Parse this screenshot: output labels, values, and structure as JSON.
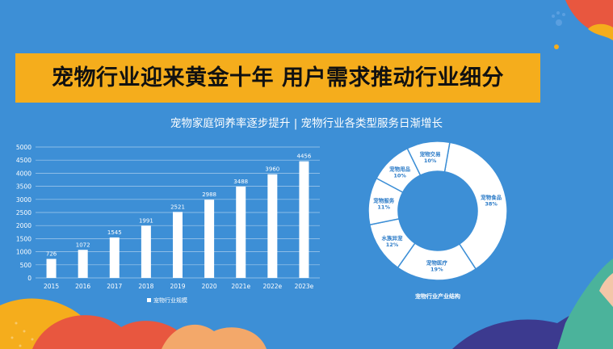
{
  "header": {
    "title": "宠物行业迎来黄金十年  用户需求推动行业细分",
    "subtitle": "宠物家庭饲养率逐步提升 | 宠物行业各类型服务日渐增长"
  },
  "colors": {
    "background": "#3d8fd6",
    "banner": "#f5ad1c",
    "bars": "#ffffff",
    "donut_text": "#2d7cc8"
  },
  "chart_data": [
    {
      "type": "bar",
      "categories": [
        "2015",
        "2016",
        "2017",
        "2018",
        "2019",
        "2020",
        "2021e",
        "2022e",
        "2023e"
      ],
      "series": [
        {
          "name": "宠物行业规模",
          "values": [
            726,
            1072,
            1545,
            1991,
            2521,
            2988,
            3488,
            3960,
            4456
          ]
        }
      ],
      "ylim": [
        0,
        5000
      ],
      "yticks": [
        0,
        500,
        1000,
        1500,
        2000,
        2500,
        3000,
        3500,
        4000,
        4500,
        5000
      ],
      "grid": true,
      "legend": "bottom"
    },
    {
      "type": "pie",
      "title": "宠物行业产业结构",
      "slices": [
        {
          "label": "宠物食品",
          "value": 38,
          "text": "38%"
        },
        {
          "label": "宠物医疗",
          "value": 19,
          "text": "19%"
        },
        {
          "label": "水族异宠",
          "value": 12,
          "text": "12%"
        },
        {
          "label": "宠物服务",
          "value": 11,
          "text": "11%"
        },
        {
          "label": "宠物用品",
          "value": 10,
          "text": "10%"
        },
        {
          "label": "宠物交易",
          "value": 10,
          "text": "10%"
        }
      ]
    }
  ]
}
